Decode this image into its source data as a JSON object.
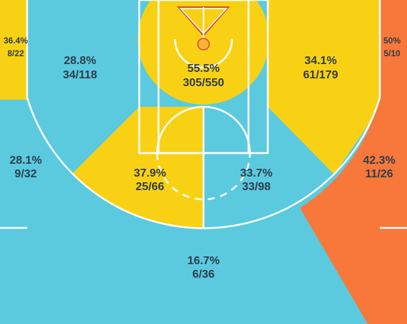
{
  "zones": [
    {
      "pct": "36.4%",
      "shots": "8/22"
    },
    {
      "pct": "50%",
      "shots": "5/10"
    },
    {
      "pct": "28.8%",
      "shots": "34/118"
    },
    {
      "pct": "55.5%",
      "shots": "305/550"
    },
    {
      "pct": "34.1%",
      "shots": "61/179"
    },
    {
      "pct": "28.1%",
      "shots": "9/32"
    },
    {
      "pct": "42.3%",
      "shots": "11/26"
    },
    {
      "pct": "37.9%",
      "shots": "25/66"
    },
    {
      "pct": "33.7%",
      "shots": "33/98"
    },
    {
      "pct": "16.7%",
      "shots": "6/36"
    }
  ]
}
